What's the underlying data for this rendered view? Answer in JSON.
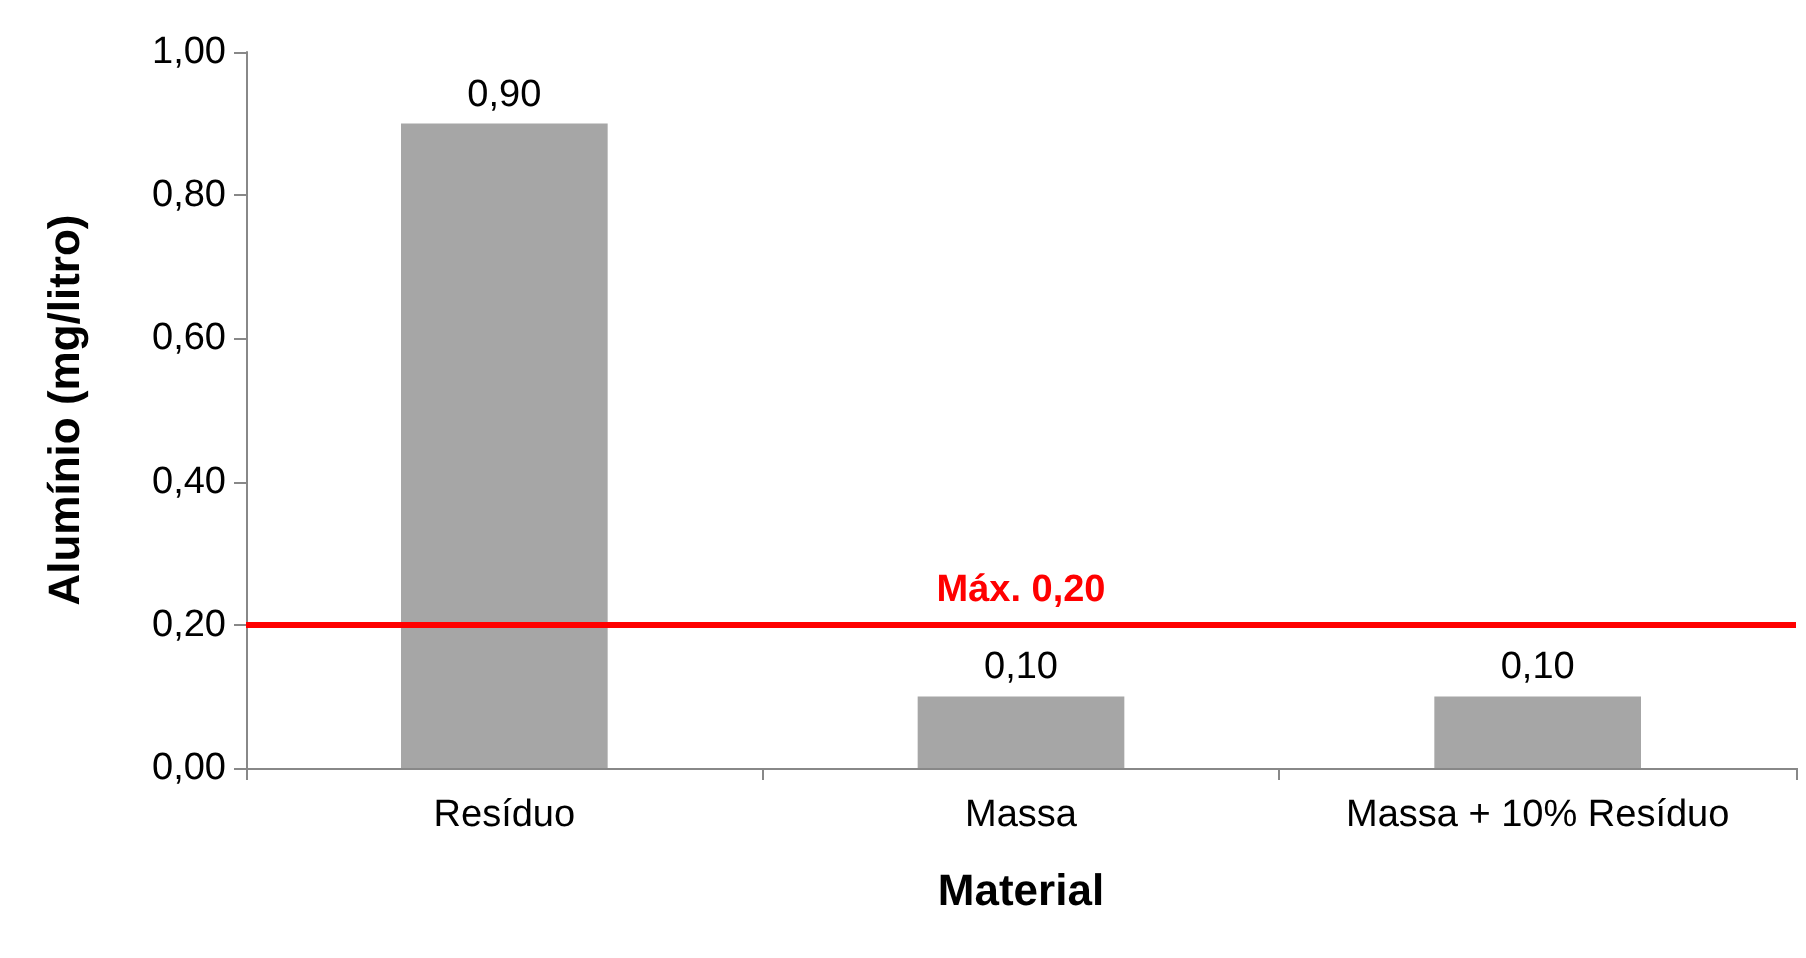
{
  "chart_data": {
    "type": "bar",
    "xlabel": "Material",
    "ylabel": "Alumínio (mg/litro)",
    "categories": [
      "Resíduo",
      "Massa",
      "Massa + 10% Resíduo"
    ],
    "values": [
      0.9,
      0.1,
      0.1
    ],
    "color": "#a6a6a6",
    "value_labels": [
      "0,90",
      "0,10",
      "0,10"
    ],
    "ylim": [
      0,
      1
    ],
    "yticks": [
      {
        "value": 0,
        "label": "0,00"
      },
      {
        "value": 0.2,
        "label": "0,20"
      },
      {
        "value": 0.4,
        "label": "0,40"
      },
      {
        "value": 0.6,
        "label": "0,60"
      },
      {
        "value": 0.8,
        "label": "0,80"
      },
      {
        "value": 1,
        "label": "1,00"
      }
    ],
    "ref_lines": [
      {
        "axis": "y",
        "value": 0.2,
        "label": "Máx. 0,20",
        "color": "#ff0000"
      }
    ],
    "grid": false
  }
}
